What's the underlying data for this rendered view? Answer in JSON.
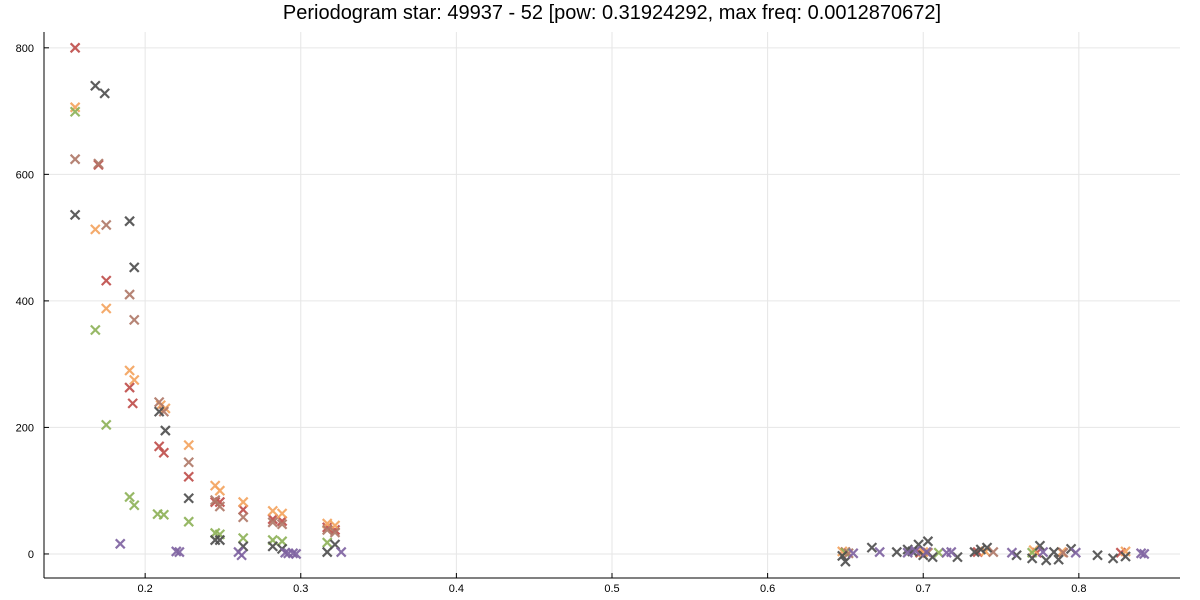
{
  "chart_data": {
    "type": "scatter",
    "title": "Periodogram star: 49937 - 52 [pow: 0.31924292, max freq: 0.0012870672]",
    "xlabel": "",
    "ylabel": "",
    "xlim": [
      0.135,
      0.865
    ],
    "ylim": [
      -38,
      825
    ],
    "xticks": [
      0.2,
      0.3,
      0.4,
      0.5,
      0.6,
      0.7,
      0.8
    ],
    "xtick_labels": [
      "0.2",
      "0.3",
      "0.4",
      "0.5",
      "0.6",
      "0.7",
      "0.8"
    ],
    "yticks": [
      0,
      200,
      400,
      600,
      800
    ],
    "ytick_labels": [
      "0",
      "200",
      "400",
      "600",
      "800"
    ],
    "grid": true,
    "legend": "none",
    "marker": "x",
    "series": [
      {
        "color": "#c0504d",
        "points": [
          [
            0.155,
            800
          ],
          [
            0.17,
            615
          ],
          [
            0.175,
            432
          ],
          [
            0.19,
            263
          ],
          [
            0.192,
            238
          ],
          [
            0.209,
            170
          ],
          [
            0.212,
            160
          ],
          [
            0.228,
            122
          ],
          [
            0.245,
            82
          ],
          [
            0.248,
            82
          ],
          [
            0.263,
            70
          ],
          [
            0.282,
            55
          ],
          [
            0.288,
            52
          ],
          [
            0.317,
            42
          ],
          [
            0.322,
            38
          ],
          [
            0.65,
            3
          ],
          [
            0.698,
            2
          ],
          [
            0.735,
            3
          ],
          [
            0.773,
            2
          ],
          [
            0.827,
            2
          ]
        ]
      },
      {
        "color": "#f4a460",
        "points": [
          [
            0.155,
            706
          ],
          [
            0.168,
            513
          ],
          [
            0.175,
            388
          ],
          [
            0.19,
            290
          ],
          [
            0.193,
            275
          ],
          [
            0.21,
            235
          ],
          [
            0.213,
            230
          ],
          [
            0.228,
            172
          ],
          [
            0.245,
            108
          ],
          [
            0.248,
            100
          ],
          [
            0.263,
            82
          ],
          [
            0.282,
            68
          ],
          [
            0.288,
            64
          ],
          [
            0.317,
            48
          ],
          [
            0.322,
            45
          ],
          [
            0.648,
            4
          ],
          [
            0.7,
            3
          ],
          [
            0.74,
            4
          ],
          [
            0.771,
            6
          ],
          [
            0.789,
            3
          ],
          [
            0.83,
            4
          ]
        ]
      },
      {
        "color": "#8fb35a",
        "points": [
          [
            0.155,
            699
          ],
          [
            0.168,
            354
          ],
          [
            0.175,
            204
          ],
          [
            0.19,
            90
          ],
          [
            0.193,
            77
          ],
          [
            0.208,
            63
          ],
          [
            0.212,
            62
          ],
          [
            0.228,
            51
          ],
          [
            0.245,
            33
          ],
          [
            0.248,
            31
          ],
          [
            0.263,
            25
          ],
          [
            0.282,
            22
          ],
          [
            0.288,
            20
          ],
          [
            0.317,
            18
          ],
          [
            0.65,
            2
          ],
          [
            0.71,
            2
          ],
          [
            0.77,
            2
          ]
        ]
      },
      {
        "color": "#b07a6a",
        "points": [
          [
            0.155,
            624
          ],
          [
            0.17,
            617
          ],
          [
            0.175,
            520
          ],
          [
            0.19,
            410
          ],
          [
            0.193,
            370
          ],
          [
            0.209,
            240
          ],
          [
            0.212,
            225
          ],
          [
            0.228,
            145
          ],
          [
            0.245,
            85
          ],
          [
            0.248,
            75
          ],
          [
            0.263,
            58
          ],
          [
            0.282,
            50
          ],
          [
            0.288,
            47
          ],
          [
            0.317,
            38
          ],
          [
            0.322,
            34
          ],
          [
            0.652,
            1
          ],
          [
            0.703,
            2
          ],
          [
            0.745,
            3
          ],
          [
            0.79,
            2
          ]
        ]
      },
      {
        "color": "#505050",
        "points": [
          [
            0.155,
            536
          ],
          [
            0.168,
            740
          ],
          [
            0.174,
            728
          ],
          [
            0.19,
            526
          ],
          [
            0.193,
            453
          ],
          [
            0.209,
            225
          ],
          [
            0.213,
            195
          ],
          [
            0.228,
            88
          ],
          [
            0.245,
            22
          ],
          [
            0.248,
            22
          ],
          [
            0.263,
            12
          ],
          [
            0.282,
            12
          ],
          [
            0.288,
            8
          ],
          [
            0.317,
            3
          ],
          [
            0.322,
            15
          ],
          [
            0.648,
            -3
          ],
          [
            0.65,
            -12
          ],
          [
            0.667,
            10
          ],
          [
            0.683,
            3
          ],
          [
            0.69,
            7
          ],
          [
            0.693,
            4
          ],
          [
            0.697,
            15
          ],
          [
            0.7,
            -2
          ],
          [
            0.703,
            20
          ],
          [
            0.706,
            -5
          ],
          [
            0.722,
            -5
          ],
          [
            0.733,
            3
          ],
          [
            0.737,
            7
          ],
          [
            0.741,
            10
          ],
          [
            0.76,
            -2
          ],
          [
            0.77,
            -7
          ],
          [
            0.775,
            13
          ],
          [
            0.779,
            -10
          ],
          [
            0.784,
            3
          ],
          [
            0.787,
            -9
          ],
          [
            0.795,
            8
          ],
          [
            0.812,
            -2
          ],
          [
            0.822,
            -7
          ],
          [
            0.83,
            -4
          ]
        ]
      },
      {
        "color": "#8064a2",
        "points": [
          [
            0.184,
            16
          ],
          [
            0.22,
            4
          ],
          [
            0.222,
            3
          ],
          [
            0.26,
            3
          ],
          [
            0.262,
            -2
          ],
          [
            0.29,
            2
          ],
          [
            0.292,
            1
          ],
          [
            0.295,
            1
          ],
          [
            0.297,
            0
          ],
          [
            0.326,
            3
          ],
          [
            0.655,
            1
          ],
          [
            0.672,
            3
          ],
          [
            0.69,
            2
          ],
          [
            0.695,
            5
          ],
          [
            0.702,
            3
          ],
          [
            0.715,
            2
          ],
          [
            0.718,
            3
          ],
          [
            0.757,
            2
          ],
          [
            0.777,
            3
          ],
          [
            0.798,
            2
          ],
          [
            0.84,
            1
          ],
          [
            0.842,
            0
          ]
        ]
      }
    ]
  }
}
